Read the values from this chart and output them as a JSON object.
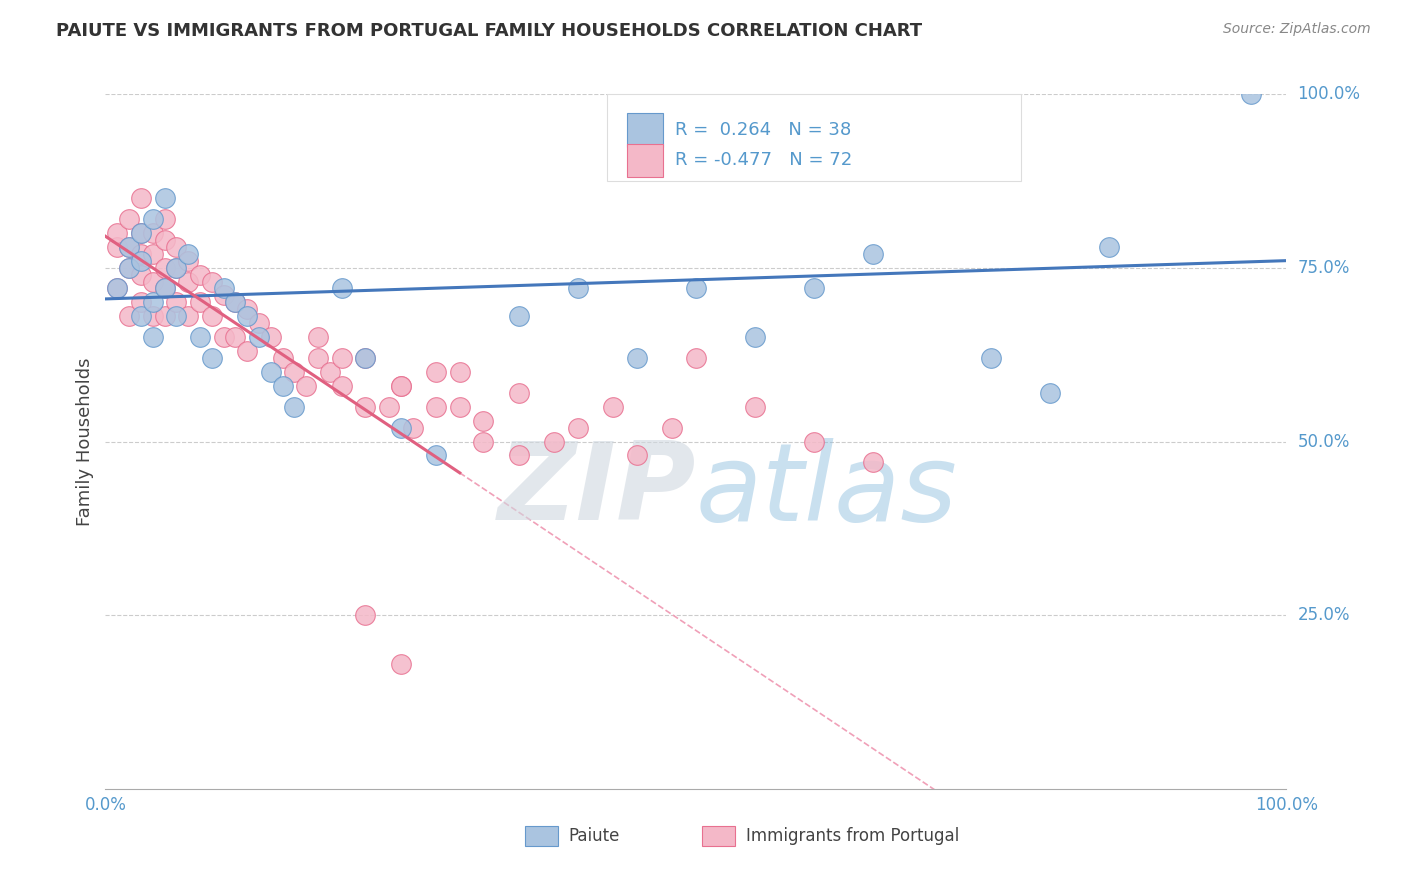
{
  "title": "PAIUTE VS IMMIGRANTS FROM PORTUGAL FAMILY HOUSEHOLDS CORRELATION CHART",
  "source": "Source: ZipAtlas.com",
  "ylabel": "Family Households",
  "xlim": [
    0,
    1.0
  ],
  "ylim": [
    0,
    1.0
  ],
  "ytick_labels": [
    "25.0%",
    "50.0%",
    "75.0%",
    "100.0%"
  ],
  "ytick_positions": [
    0.25,
    0.5,
    0.75,
    1.0
  ],
  "legend_labels": [
    "Paiute",
    "Immigrants from Portugal"
  ],
  "r_paiute": 0.264,
  "n_paiute": 38,
  "r_portugal": -0.477,
  "n_portugal": 72,
  "paiute_color": "#aac4e0",
  "paiute_edge": "#6699cc",
  "portugal_color": "#f4b8c8",
  "portugal_edge": "#e87090",
  "trend_blue": "#4477bb",
  "trend_pink": "#e06080",
  "trend_pink_dash": "#f0a0b8",
  "background_color": "#ffffff",
  "grid_color": "#cccccc",
  "title_color": "#333333",
  "source_color": "#888888",
  "axis_label_color": "#444444",
  "tick_color": "#5599cc",
  "paiute_x": [
    0.01,
    0.02,
    0.02,
    0.03,
    0.03,
    0.03,
    0.04,
    0.04,
    0.04,
    0.05,
    0.05,
    0.06,
    0.06,
    0.07,
    0.08,
    0.09,
    0.1,
    0.11,
    0.12,
    0.13,
    0.14,
    0.15,
    0.16,
    0.2,
    0.22,
    0.25,
    0.28,
    0.35,
    0.4,
    0.45,
    0.5,
    0.55,
    0.6,
    0.65,
    0.75,
    0.8,
    0.85,
    0.97
  ],
  "paiute_y": [
    0.72,
    0.78,
    0.75,
    0.8,
    0.76,
    0.68,
    0.82,
    0.7,
    0.65,
    0.85,
    0.72,
    0.75,
    0.68,
    0.77,
    0.65,
    0.62,
    0.72,
    0.7,
    0.68,
    0.65,
    0.6,
    0.58,
    0.55,
    0.72,
    0.62,
    0.52,
    0.48,
    0.68,
    0.72,
    0.62,
    0.72,
    0.65,
    0.72,
    0.77,
    0.62,
    0.57,
    0.78,
    1.0
  ],
  "portugal_x": [
    0.01,
    0.01,
    0.01,
    0.02,
    0.02,
    0.02,
    0.02,
    0.03,
    0.03,
    0.03,
    0.03,
    0.03,
    0.04,
    0.04,
    0.04,
    0.04,
    0.05,
    0.05,
    0.05,
    0.05,
    0.05,
    0.06,
    0.06,
    0.06,
    0.07,
    0.07,
    0.07,
    0.08,
    0.08,
    0.09,
    0.09,
    0.1,
    0.1,
    0.11,
    0.11,
    0.12,
    0.12,
    0.13,
    0.14,
    0.15,
    0.16,
    0.17,
    0.18,
    0.19,
    0.2,
    0.22,
    0.24,
    0.25,
    0.26,
    0.28,
    0.3,
    0.32,
    0.35,
    0.38,
    0.4,
    0.43,
    0.45,
    0.48,
    0.5,
    0.55,
    0.6,
    0.65,
    0.22,
    0.25,
    0.28,
    0.3,
    0.32,
    0.35,
    0.2,
    0.25,
    0.22,
    0.18
  ],
  "portugal_y": [
    0.78,
    0.8,
    0.72,
    0.82,
    0.78,
    0.75,
    0.68,
    0.85,
    0.8,
    0.77,
    0.74,
    0.7,
    0.8,
    0.77,
    0.73,
    0.68,
    0.82,
    0.79,
    0.75,
    0.72,
    0.68,
    0.78,
    0.75,
    0.7,
    0.76,
    0.73,
    0.68,
    0.74,
    0.7,
    0.73,
    0.68,
    0.71,
    0.65,
    0.7,
    0.65,
    0.69,
    0.63,
    0.67,
    0.65,
    0.62,
    0.6,
    0.58,
    0.62,
    0.6,
    0.58,
    0.62,
    0.55,
    0.58,
    0.52,
    0.55,
    0.6,
    0.53,
    0.57,
    0.5,
    0.52,
    0.55,
    0.48,
    0.52,
    0.62,
    0.55,
    0.5,
    0.47,
    0.25,
    0.18,
    0.6,
    0.55,
    0.5,
    0.48,
    0.62,
    0.58,
    0.55,
    0.65
  ]
}
